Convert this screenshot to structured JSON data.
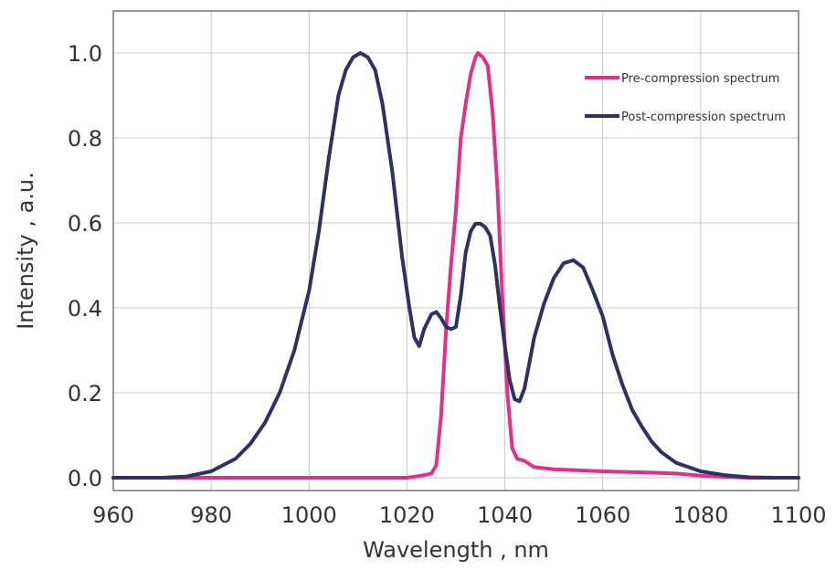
{
  "chart_data": {
    "type": "line",
    "title": "",
    "xlabel": "Wavelength , nm",
    "ylabel": "Intensity , a.u.",
    "xlim": [
      960,
      1100
    ],
    "ylim": [
      0.0,
      1.1
    ],
    "x_ticks": [
      960,
      980,
      1000,
      1020,
      1040,
      1060,
      1080,
      1100
    ],
    "y_ticks": [
      0.0,
      0.2,
      0.4,
      0.6,
      0.8,
      1.0
    ],
    "x_tick_labels": [
      "960",
      "980",
      "1000",
      "1020",
      "1040",
      "1060",
      "1080",
      "1100"
    ],
    "y_tick_labels": [
      "0.0",
      "0.2",
      "0.4",
      "0.6",
      "0.8",
      "1.0"
    ],
    "grid": true,
    "legend_position": "top-right",
    "series": [
      {
        "name": "Pre-compression spectrum",
        "color": "#e0308a",
        "points": [
          [
            960,
            0.0
          ],
          [
            1000,
            0.0
          ],
          [
            1020,
            0.0
          ],
          [
            1023,
            0.005
          ],
          [
            1025,
            0.01
          ],
          [
            1026,
            0.03
          ],
          [
            1027,
            0.15
          ],
          [
            1028,
            0.35
          ],
          [
            1029,
            0.5
          ],
          [
            1030,
            0.63
          ],
          [
            1031,
            0.8
          ],
          [
            1032,
            0.88
          ],
          [
            1033,
            0.95
          ],
          [
            1034,
            0.99
          ],
          [
            1034.5,
            1.0
          ],
          [
            1035.5,
            0.99
          ],
          [
            1036.5,
            0.97
          ],
          [
            1037.5,
            0.86
          ],
          [
            1038.5,
            0.68
          ],
          [
            1039.5,
            0.42
          ],
          [
            1040.5,
            0.2
          ],
          [
            1041.5,
            0.07
          ],
          [
            1042.5,
            0.045
          ],
          [
            1044,
            0.04
          ],
          [
            1046,
            0.025
          ],
          [
            1050,
            0.02
          ],
          [
            1060,
            0.015
          ],
          [
            1070,
            0.012
          ],
          [
            1075,
            0.01
          ],
          [
            1080,
            0.005
          ],
          [
            1085,
            0.002
          ],
          [
            1090,
            0.0
          ],
          [
            1100,
            0.0
          ]
        ]
      },
      {
        "name": "Post-compression spectrum",
        "color": "#2e3161",
        "points": [
          [
            960,
            0.0
          ],
          [
            970,
            0.0
          ],
          [
            975,
            0.003
          ],
          [
            980,
            0.015
          ],
          [
            985,
            0.045
          ],
          [
            988,
            0.08
          ],
          [
            991,
            0.13
          ],
          [
            994,
            0.2
          ],
          [
            997,
            0.3
          ],
          [
            1000,
            0.44
          ],
          [
            1002,
            0.58
          ],
          [
            1004,
            0.75
          ],
          [
            1006,
            0.9
          ],
          [
            1007.5,
            0.96
          ],
          [
            1009,
            0.99
          ],
          [
            1010.5,
            1.0
          ],
          [
            1012,
            0.99
          ],
          [
            1013.5,
            0.96
          ],
          [
            1015,
            0.88
          ],
          [
            1017,
            0.72
          ],
          [
            1019,
            0.52
          ],
          [
            1020.5,
            0.4
          ],
          [
            1021.5,
            0.33
          ],
          [
            1022.5,
            0.31
          ],
          [
            1023.5,
            0.35
          ],
          [
            1025,
            0.385
          ],
          [
            1026,
            0.39
          ],
          [
            1027,
            0.375
          ],
          [
            1028,
            0.355
          ],
          [
            1029,
            0.35
          ],
          [
            1030,
            0.355
          ],
          [
            1031,
            0.43
          ],
          [
            1032,
            0.53
          ],
          [
            1033,
            0.58
          ],
          [
            1034,
            0.598
          ],
          [
            1035,
            0.598
          ],
          [
            1036,
            0.59
          ],
          [
            1037,
            0.57
          ],
          [
            1038,
            0.5
          ],
          [
            1039,
            0.4
          ],
          [
            1040,
            0.31
          ],
          [
            1041,
            0.23
          ],
          [
            1042,
            0.185
          ],
          [
            1043,
            0.18
          ],
          [
            1044,
            0.21
          ],
          [
            1045,
            0.27
          ],
          [
            1046,
            0.33
          ],
          [
            1048,
            0.41
          ],
          [
            1050,
            0.47
          ],
          [
            1052,
            0.505
          ],
          [
            1054,
            0.512
          ],
          [
            1056,
            0.495
          ],
          [
            1058,
            0.44
          ],
          [
            1060,
            0.38
          ],
          [
            1062,
            0.29
          ],
          [
            1064,
            0.22
          ],
          [
            1066,
            0.16
          ],
          [
            1068,
            0.12
          ],
          [
            1070,
            0.085
          ],
          [
            1072,
            0.06
          ],
          [
            1075,
            0.035
          ],
          [
            1080,
            0.015
          ],
          [
            1085,
            0.006
          ],
          [
            1090,
            0.001
          ],
          [
            1095,
            0.0
          ],
          [
            1100,
            0.0
          ]
        ]
      }
    ]
  }
}
